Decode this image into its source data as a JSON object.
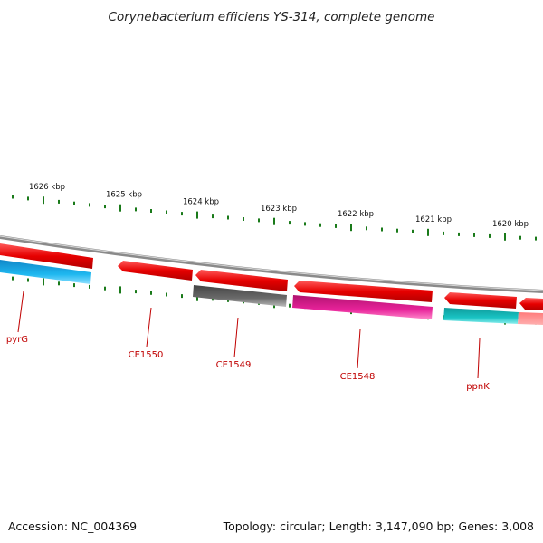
{
  "title": "Corynebacterium efficiens YS-314, complete genome",
  "footer": {
    "accession": "Accession: NC_004369",
    "summary": "Topology: circular; Length: 3,147,090 bp; Genes: 3,008"
  },
  "scale_labels": [
    "1626 kbp",
    "1625 kbp",
    "1624 kbp",
    "1623 kbp",
    "1622 kbp",
    "1621 kbp",
    "1620 kbp"
  ],
  "genes": [
    {
      "name": "pyrG",
      "color": "#1fb8f0"
    },
    {
      "name": "CE1550",
      "color": "#ee0000"
    },
    {
      "name": "CE1549",
      "color": "#666666"
    },
    {
      "name": "CE1548",
      "color": "#e8239a"
    },
    {
      "name": "ppnK",
      "color": "#19c3c3"
    }
  ],
  "colors": {
    "forward": "#ee0000",
    "backbone": "#8a8a8a",
    "ticks": "#1a7a1a",
    "label": "#c00000"
  }
}
